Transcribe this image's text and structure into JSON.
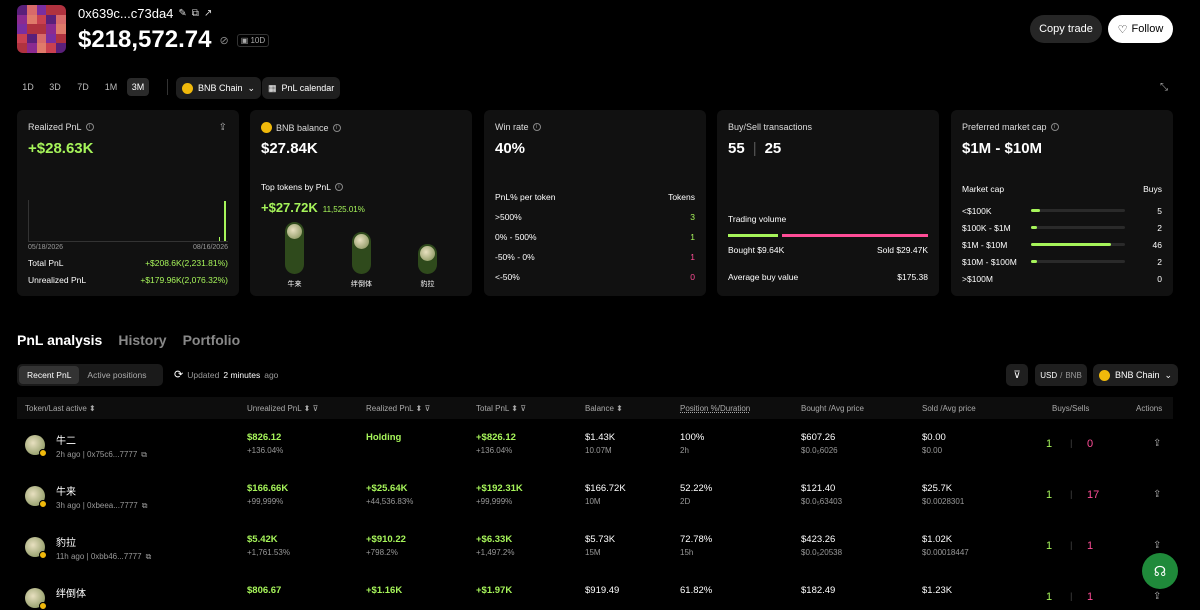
{
  "wallet": {
    "address": "0x639c...c73da4",
    "balance": "$218,572.74",
    "period_badge": "10D"
  },
  "actions": {
    "copy_trade": "Copy trade",
    "follow": "Follow"
  },
  "timeframes": [
    "1D",
    "3D",
    "7D",
    "1M",
    "3M"
  ],
  "active_timeframe": "3M",
  "chain_selector": "BNB Chain",
  "pnl_calendar": "PnL calendar",
  "realized": {
    "title": "Realized PnL",
    "value": "+$28.63K",
    "date_start": "05/18/2026",
    "date_end": "08/16/2026",
    "total_label": "Total PnL",
    "total_value": "+$208.6K(2,231.81%)",
    "unrealized_label": "Unrealized PnL",
    "unrealized_value": "+$179.96K(2,076.32%)"
  },
  "bnb": {
    "title": "BNB balance",
    "value": "$27.84K",
    "top_label": "Top tokens by PnL",
    "top_value": "+$27.72K",
    "top_pct": "11,525.01%",
    "tokens": [
      {
        "name": "牛来",
        "fill": 0.75
      },
      {
        "name": "绊倒体",
        "fill": 0.58
      },
      {
        "name": "豹拉",
        "fill": 0.35
      }
    ]
  },
  "winrate": {
    "title": "Win rate",
    "value": "40%",
    "col1": "PnL% per token",
    "col2": "Tokens",
    "rows": [
      {
        "label": ">500%",
        "value": "3",
        "color": "green"
      },
      {
        "label": "0% - 500%",
        "value": "1",
        "color": "green"
      },
      {
        "label": "-50% - 0%",
        "value": "1",
        "color": "pink"
      },
      {
        "label": "<-50%",
        "value": "0",
        "color": "pink"
      }
    ]
  },
  "buysell": {
    "title": "Buy/Sell transactions",
    "buys": "55",
    "sells": "25",
    "volume_label": "Trading volume",
    "bought": "Bought $9.64K",
    "sold": "Sold $29.47K",
    "bought_share": 0.25,
    "avg_label": "Average buy value",
    "avg_value": "$175.38"
  },
  "mcap": {
    "title": "Preferred market cap",
    "value": "$1M - $10M",
    "col1": "Market cap",
    "col2": "Buys",
    "rows": [
      {
        "label": "<$100K",
        "value": "5",
        "fill": 0.1
      },
      {
        "label": "$100K - $1M",
        "value": "2",
        "fill": 0.04
      },
      {
        "label": "$1M - $10M",
        "value": "46",
        "fill": 0.85
      },
      {
        "label": "$10M - $100M",
        "value": "2",
        "fill": 0.04
      },
      {
        "label": ">$100M",
        "value": "0",
        "fill": 0
      }
    ]
  },
  "tabs": [
    "PnL analysis",
    "History",
    "Portfolio"
  ],
  "subtabs": [
    "Recent PnL",
    "Active positions"
  ],
  "updated_prefix": "Updated",
  "updated_time": "2 minutes",
  "updated_suffix": "ago",
  "currency": {
    "usd": "USD",
    "bnb": "BNB"
  },
  "table_chain": "BNB Chain",
  "columns": [
    "Token/Last active",
    "Unrealized PnL",
    "Realized PnL",
    "Total PnL",
    "Balance",
    "Position %/Duration",
    "Bought /Avg price",
    "Sold /Avg price",
    "Buys/Sells",
    "Actions"
  ],
  "rows": [
    {
      "name": "牛二",
      "time": "2h ago",
      "addr": "0x75c6...7777",
      "unreal": "$826.12",
      "unreal_pct": "+136.04%",
      "real": "Holding",
      "real_pct": "",
      "total": "+$826.12",
      "total_pct": "+136.04%",
      "bal": "$1.43K",
      "bal_sub": "10.07M",
      "pos": "100%",
      "dur": "2h",
      "bought": "$607.26",
      "bought_avg": "$0.0₅6026",
      "sold": "$0.00",
      "sold_avg": "$0.00",
      "buys": "1",
      "sells": "0"
    },
    {
      "name": "牛来",
      "time": "3h ago",
      "addr": "0xbeea...7777",
      "unreal": "$166.66K",
      "unreal_pct": "+99,999%",
      "real": "+$25.64K",
      "real_pct": "+44,536.83%",
      "total": "+$192.31K",
      "total_pct": "+99,999%",
      "bal": "$166.72K",
      "bal_sub": "10M",
      "pos": "52.22%",
      "dur": "2D",
      "bought": "$121.40",
      "bought_avg": "$0.0₅63403",
      "sold": "$25.7K",
      "sold_avg": "$0.0028301",
      "buys": "1",
      "sells": "17"
    },
    {
      "name": "豹拉",
      "time": "11h ago",
      "addr": "0xbb46...7777",
      "unreal": "$5.42K",
      "unreal_pct": "+1,761.53%",
      "real": "+$910.22",
      "real_pct": "+798.2%",
      "total": "+$6.33K",
      "total_pct": "+1,497.2%",
      "bal": "$5.73K",
      "bal_sub": "15M",
      "pos": "72.78%",
      "dur": "15h",
      "bought": "$423.26",
      "bought_avg": "$0.0₅20538",
      "sold": "$1.02K",
      "sold_avg": "$0.00018447",
      "buys": "1",
      "sells": "1"
    },
    {
      "name": "绊倒体",
      "time": "",
      "addr": "",
      "unreal": "$806.67",
      "unreal_pct": "",
      "real": "+$1.16K",
      "real_pct": "",
      "total": "+$1.97K",
      "total_pct": "",
      "bal": "$919.49",
      "bal_sub": "",
      "pos": "61.82%",
      "dur": "",
      "bought": "$182.49",
      "bought_avg": "",
      "sold": "$1.23K",
      "sold_avg": "",
      "buys": "1",
      "sells": "1"
    }
  ],
  "colors": {
    "green": "#a6f45a",
    "pink": "#ff4d97",
    "bg": "#000000",
    "card": "#111111"
  }
}
